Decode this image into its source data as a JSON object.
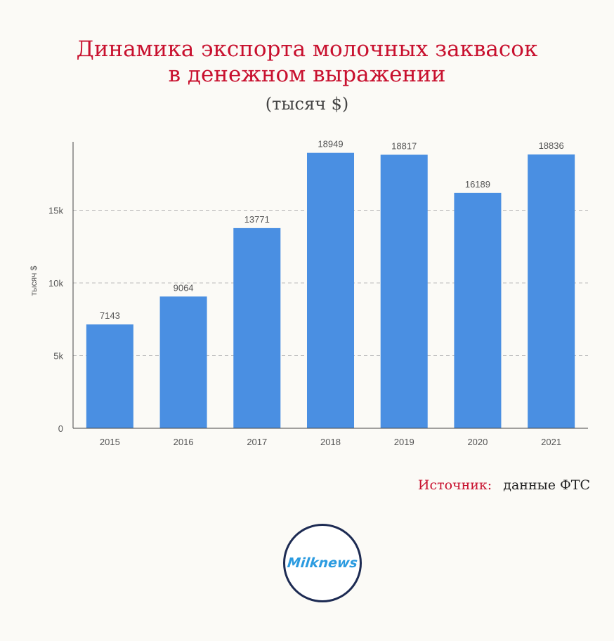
{
  "header": {
    "title_line1": "Динамика экспорта молочных заквасок",
    "title_line2": "в денежном выражении",
    "subtitle": "(тысяч $)"
  },
  "source": {
    "label": "Источник:",
    "value": "данные ФТС"
  },
  "logo": {
    "text": "Milknews"
  },
  "colors": {
    "bar": "#4a8fe2",
    "title": "#c8102e",
    "grid": "#bbbbbb",
    "logo_ring": "#1d2b53",
    "logo_text": "#2b9be0"
  },
  "chart_data": {
    "type": "bar",
    "title": "Динамика экспорта молочных заквасок в денежном выражении",
    "subtitle": "(тысяч $)",
    "ylabel": "тысяч $",
    "xlabel": "",
    "categories": [
      "2015",
      "2016",
      "2017",
      "2018",
      "2019",
      "2020",
      "2021"
    ],
    "values": [
      7143,
      9064,
      13771,
      18949,
      18817,
      16189,
      18836
    ],
    "ylim": [
      0,
      19900
    ],
    "yticks": [
      0,
      5000,
      10000,
      15000
    ],
    "ytick_labels": [
      "0",
      "5k",
      "10k",
      "15k"
    ],
    "grid": true,
    "data_labels": true
  }
}
